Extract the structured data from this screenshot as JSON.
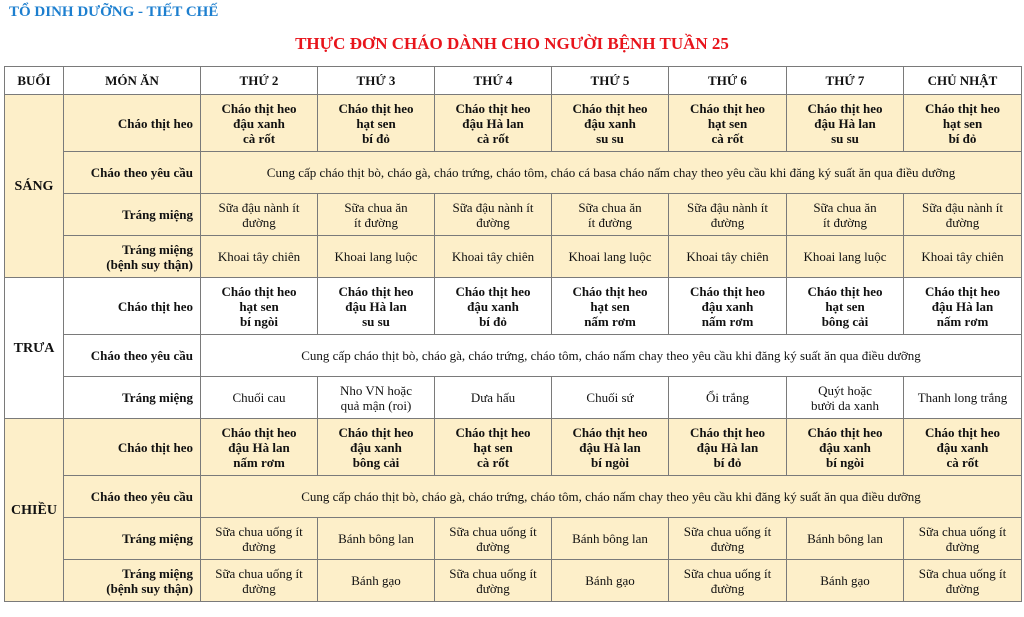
{
  "org": "TỔ DINH DƯỠNG - TIẾT CHẾ",
  "title": "THỰC ĐƠN CHÁO DÀNH CHO NGƯỜI BỆNH TUẦN 25",
  "highlight_color": "#fdefc9",
  "headers": [
    "BUỔI",
    "MÓN ĂN",
    "THỨ 2",
    "THỨ 3",
    "THỨ 4",
    "THỨ 5",
    "THỨ 6",
    "THỨ 7",
    "CHỦ NHẬT"
  ],
  "sessions": [
    {
      "name": "SÁNG",
      "highlight": true,
      "rows": [
        {
          "dish": "Cháo thịt heo",
          "bold": true,
          "cells": [
            "Cháo thịt heo\nđậu xanh\ncà rốt",
            "Cháo thịt heo\nhạt sen\nbí đỏ",
            "Cháo thịt heo\nđậu Hà lan\ncà rốt",
            "Cháo thịt heo\nđậu xanh\nsu su",
            "Cháo thịt heo\nhạt sen\ncà rốt",
            "Cháo thịt heo\nđậu Hà lan\nsu su",
            "Cháo thịt heo\nhạt sen\nbí đỏ"
          ]
        },
        {
          "dish": "Cháo theo yêu cầu",
          "span": "Cung cấp cháo thịt bò, cháo gà, cháo trứng, cháo tôm, cháo cá basa cháo nấm chay theo yêu cầu khi đăng ký suất ăn qua điều dưỡng"
        },
        {
          "dish": "Tráng miệng",
          "cells": [
            "Sữa đậu nành ít\nđường",
            "Sữa chua ăn\nít đường",
            "Sữa đậu nành ít\nđường",
            "Sữa chua ăn\nít đường",
            "Sữa đậu nành ít\nđường",
            "Sữa chua ăn\nít đường",
            "Sữa đậu nành ít\nđường"
          ]
        },
        {
          "dish": "Tráng miệng\n(bệnh suy thận)",
          "cells": [
            "Khoai tây chiên",
            "Khoai lang luộc",
            "Khoai tây chiên",
            "Khoai lang luộc",
            "Khoai tây chiên",
            "Khoai lang luộc",
            "Khoai tây chiên"
          ]
        }
      ]
    },
    {
      "name": "TRƯA",
      "highlight": false,
      "rows": [
        {
          "dish": "Cháo thịt heo",
          "bold": true,
          "cells": [
            "Cháo thịt heo\nhạt sen\nbí ngòi",
            "Cháo thịt heo\nđậu Hà lan\nsu su",
            "Cháo thịt heo\nđậu xanh\nbí đỏ",
            "Cháo thịt heo\nhạt sen\nnấm rơm",
            "Cháo thịt heo\nđậu xanh\nnấm rơm",
            "Cháo thịt heo\nhạt sen\nbông cải",
            "Cháo thịt heo\nđậu Hà lan\nnấm rơm"
          ]
        },
        {
          "dish": "Cháo theo yêu cầu",
          "span": "Cung cấp cháo thịt bò, cháo gà, cháo trứng, cháo tôm, cháo nấm chay theo yêu cầu khi đăng ký suất ăn qua điều dưỡng"
        },
        {
          "dish": "Tráng miệng",
          "cells": [
            "Chuối cau",
            "Nho VN hoặc\nquả mận (roi)",
            "Dưa hấu",
            "Chuối sứ",
            "Ổi trắng",
            "Quýt hoặc\nbưởi da xanh",
            "Thanh long trắng"
          ]
        }
      ]
    },
    {
      "name": "CHIỀU",
      "highlight": true,
      "rows": [
        {
          "dish": "Cháo thịt heo",
          "bold": true,
          "cells": [
            "Cháo thịt heo\nđậu Hà lan\nnấm rơm",
            "Cháo thịt heo\nđậu xanh\nbông cải",
            "Cháo thịt heo\nhạt sen\ncà rốt",
            "Cháo thịt heo\nđậu Hà lan\nbí ngòi",
            "Cháo thịt heo\nđậu Hà lan\nbí đỏ",
            "Cháo thịt heo\nđậu xanh\nbí ngòi",
            "Cháo thịt heo\nđậu xanh\ncà rốt"
          ]
        },
        {
          "dish": "Cháo theo yêu cầu",
          "span": "Cung cấp cháo thịt bò, cháo gà, cháo trứng, cháo tôm, cháo nấm chay theo yêu cầu khi đăng ký suất ăn qua điều dưỡng"
        },
        {
          "dish": "Tráng miệng",
          "cells": [
            "Sữa chua uống ít\nđường",
            "Bánh bông lan",
            "Sữa chua uống ít\nđường",
            "Bánh bông lan",
            "Sữa chua uống ít\nđường",
            "Bánh bông lan",
            "Sữa chua uống ít\nđường"
          ]
        },
        {
          "dish": "Tráng miệng\n(bệnh suy thận)",
          "cells": [
            "Sữa chua uống ít\nđường",
            "Bánh gạo",
            "Sữa chua uống ít\nđường",
            "Bánh gạo",
            "Sữa chua uống ít\nđường",
            "Bánh gạo",
            "Sữa chua uống ít\nđường"
          ]
        }
      ]
    }
  ]
}
